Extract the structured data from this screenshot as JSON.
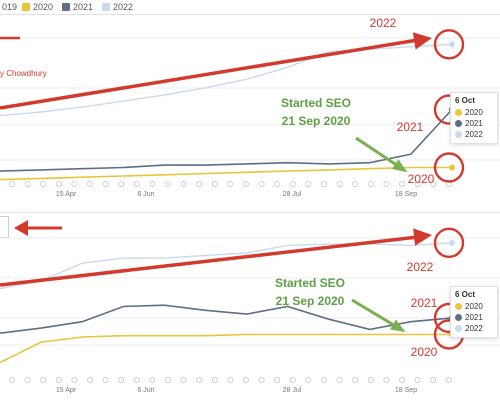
{
  "legend": {
    "items": [
      {
        "label": "019",
        "color": null
      },
      {
        "label": "2020",
        "color": "#e8c53a"
      },
      {
        "label": "2021",
        "color": "#5d6f87"
      },
      {
        "label": "2022",
        "color": "#c9daee"
      }
    ]
  },
  "author_label": "y Chowdhury",
  "colors": {
    "c2020": "#e8c53a",
    "c2021": "#5d6f87",
    "c2022": "#c9daee",
    "annot": "#d23a2e",
    "arrow_green": "#7ab04f"
  },
  "chart_data": [
    {
      "type": "line",
      "xlabels": [
        "15 Apr",
        "6 Jun",
        "28 Jul",
        "18 Sep"
      ],
      "annotations": {
        "year_labels": [
          "2022",
          "2021",
          "2020"
        ],
        "started_seo": [
          "Started SEO",
          "21 Sep 2020"
        ]
      },
      "tooltip": {
        "title": "6 Oct",
        "rows": [
          "2020",
          "2021",
          "2022"
        ]
      },
      "series": [
        {
          "name": "2020",
          "values": [
            2,
            3,
            4,
            5,
            6,
            7,
            8,
            9,
            10,
            11,
            12,
            12
          ]
        },
        {
          "name": "2021",
          "values": [
            9,
            10,
            11,
            12,
            14,
            14,
            15,
            16,
            15,
            16,
            23,
            60
          ]
        },
        {
          "name": "2022",
          "values": [
            55,
            58,
            62,
            67,
            72,
            78,
            85,
            95,
            108,
            110,
            112,
            114
          ]
        }
      ]
    },
    {
      "type": "line",
      "xlabels": [
        "15 Apr",
        "6 Jun",
        "28 Jul",
        "18 Sep"
      ],
      "annotations": {
        "year_labels": [
          "2022",
          "2021",
          "2020"
        ],
        "started_seo": [
          "Started SEO",
          "21 Sep 2020"
        ]
      },
      "tooltip": {
        "title": "6 Oct",
        "rows": [
          "2020",
          "2021",
          "2022"
        ]
      },
      "series": [
        {
          "name": "2020",
          "values": [
            2,
            18,
            22,
            23,
            23,
            23,
            24,
            24,
            24,
            24,
            24,
            24
          ]
        },
        {
          "name": "2021",
          "values": [
            25,
            29,
            34,
            46,
            47,
            43,
            40,
            46,
            36,
            28,
            34,
            37
          ]
        },
        {
          "name": "2022",
          "values": [
            60,
            66,
            80,
            84,
            84,
            86,
            88,
            94,
            95,
            95,
            94,
            96
          ]
        }
      ]
    }
  ]
}
